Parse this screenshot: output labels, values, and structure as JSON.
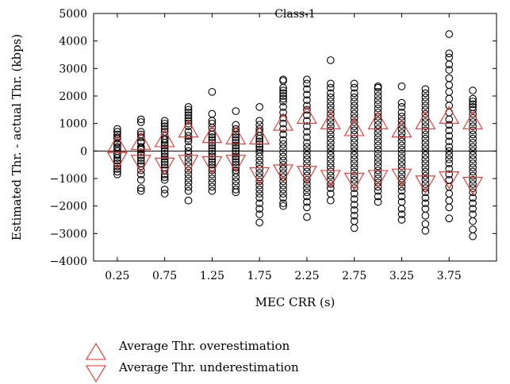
{
  "chart_data": {
    "type": "scatter",
    "title": "Class-1",
    "xlabel": "MEC CRR (s)",
    "ylabel": "Estimated Thr. - actual Thr. (kbps)",
    "xlim": [
      0,
      4.25
    ],
    "ylim": [
      -4000,
      5000
    ],
    "x_ticks": [
      0.25,
      0.75,
      1.25,
      1.75,
      2.25,
      2.75,
      3.25,
      3.75
    ],
    "y_ticks": [
      -4000,
      -3000,
      -2000,
      -1000,
      0,
      1000,
      2000,
      3000,
      4000,
      5000
    ],
    "zero_line": 0,
    "grid": false,
    "legend_position": "bottom-left",
    "colors": {
      "points": "#000000",
      "markers": "#e8322a",
      "axis": "#000000"
    },
    "series": [
      {
        "name": "points",
        "marker": "circle",
        "points": [
          {
            "x": 0.25,
            "y": [
              800,
              700,
              600,
              500,
              450,
              300,
              250,
              150,
              100,
              0,
              -100,
              -150,
              -250,
              -350,
              -450,
              -550,
              -650,
              -750,
              -850
            ]
          },
          {
            "x": 0.5,
            "y": [
              1150,
              1050,
              700,
              600,
              500,
              350,
              300,
              150,
              100,
              50,
              -50,
              -150,
              -250,
              -350,
              -450,
              -550,
              -700,
              -850,
              -1050,
              -1350,
              -1450
            ]
          },
          {
            "x": 0.75,
            "y": [
              1100,
              1000,
              900,
              800,
              700,
              550,
              450,
              400,
              300,
              200,
              100,
              0,
              -100,
              -200,
              -300,
              -400,
              -500,
              -600,
              -700,
              -850,
              -950,
              -1050,
              -1400,
              -1550
            ]
          },
          {
            "x": 1.0,
            "y": [
              1600,
              1500,
              1400,
              1300,
              1200,
              1100,
              1000,
              900,
              700,
              550,
              450,
              350,
              150,
              0,
              -100,
              -250,
              -400,
              -550,
              -700,
              -850,
              -1000,
              -1150,
              -1300,
              -1450,
              -1800
            ]
          },
          {
            "x": 1.25,
            "y": [
              2150,
              1350,
              1100,
              1000,
              850,
              700,
              600,
              500,
              400,
              300,
              200,
              100,
              0,
              -100,
              -200,
              -300,
              -400,
              -500,
              -600,
              -700,
              -850,
              -1000,
              -1150,
              -1300,
              -1450
            ]
          },
          {
            "x": 1.5,
            "y": [
              1450,
              950,
              800,
              700,
              600,
              500,
              400,
              300,
              200,
              100,
              0,
              -100,
              -200,
              -300,
              -400,
              -500,
              -600,
              -700,
              -800,
              -950,
              -1100,
              -1250,
              -1400,
              -1500
            ]
          },
          {
            "x": 1.75,
            "y": [
              1600,
              1100,
              950,
              800,
              700,
              550,
              450,
              350,
              250,
              150,
              50,
              -50,
              -200,
              -350,
              -500,
              -650,
              -800,
              -950,
              -1100,
              -1250,
              -1400,
              -1550,
              -1700,
              -1900,
              -2100,
              -2300,
              -2600
            ]
          },
          {
            "x": 2.0,
            "y": [
              2600,
              2550,
              2300,
              2200,
              2100,
              2000,
              1900,
              1800,
              1600,
              1400,
              1200,
              1000,
              800,
              600,
              400,
              250,
              100,
              -50,
              -200,
              -350,
              -500,
              -650,
              -800,
              -950,
              -1100,
              -1250,
              -1400,
              -1550,
              -1700,
              -1900,
              -2000
            ]
          },
          {
            "x": 2.25,
            "y": [
              2600,
              2450,
              2250,
              2050,
              1850,
              1650,
              1500,
              1300,
              1100,
              900,
              700,
              500,
              300,
              150,
              0,
              -150,
              -300,
              -450,
              -600,
              -750,
              -900,
              -1050,
              -1200,
              -1350,
              -1500,
              -1650,
              -1850,
              -2050,
              -2400
            ]
          },
          {
            "x": 2.5,
            "y": [
              3300,
              2450,
              2300,
              2100,
              1950,
              1800,
              1650,
              1500,
              1350,
              1200,
              1050,
              900,
              750,
              600,
              450,
              300,
              150,
              0,
              -150,
              -300,
              -450,
              -600,
              -750,
              -900,
              -1050,
              -1200,
              -1350,
              -1550,
              -1800
            ]
          },
          {
            "x": 2.75,
            "y": [
              2450,
              2300,
              2100,
              1950,
              1800,
              1650,
              1500,
              1350,
              1200,
              1050,
              900,
              750,
              600,
              450,
              300,
              150,
              0,
              -150,
              -300,
              -450,
              -600,
              -750,
              -900,
              -1050,
              -1200,
              -1350,
              -1550,
              -1750,
              -1950,
              -2150,
              -2350,
              -2550,
              -2800
            ]
          },
          {
            "x": 3.0,
            "y": [
              2350,
              2300,
              2150,
              2000,
              1850,
              1700,
              1550,
              1400,
              1250,
              1100,
              950,
              800,
              650,
              500,
              350,
              200,
              50,
              -100,
              -250,
              -400,
              -550,
              -700,
              -850,
              -1000,
              -1150,
              -1300,
              -1450,
              -1650,
              -1850
            ]
          },
          {
            "x": 3.25,
            "y": [
              2350,
              1750,
              1600,
              1400,
              1250,
              1100,
              950,
              800,
              650,
              500,
              350,
              200,
              50,
              -100,
              -250,
              -400,
              -550,
              -700,
              -850,
              -1000,
              -1150,
              -1300,
              -1450,
              -1650,
              -1850,
              -2100,
              -2300,
              -2500
            ]
          },
          {
            "x": 3.5,
            "y": [
              2250,
              2100,
              1950,
              1800,
              1650,
              1500,
              1350,
              1200,
              1050,
              900,
              750,
              600,
              450,
              300,
              150,
              0,
              -150,
              -300,
              -450,
              -600,
              -750,
              -900,
              -1050,
              -1200,
              -1350,
              -1500,
              -1700,
              -1900,
              -2100,
              -2350,
              -2650,
              -2900
            ]
          },
          {
            "x": 3.75,
            "y": [
              4250,
              3550,
              3400,
              3150,
              2950,
              2650,
              2400,
              2150,
              1900,
              1650,
              1400,
              1150,
              950,
              750,
              550,
              350,
              150,
              0,
              -150,
              -300,
              -450,
              -650,
              -850,
              -1050,
              -1300,
              -1550,
              -1800,
              -2050,
              -2450
            ]
          },
          {
            "x": 4.0,
            "y": [
              2200,
              1900,
              1800,
              1700,
              1600,
              1500,
              1350,
              1200,
              1050,
              900,
              750,
              600,
              450,
              300,
              150,
              0,
              -150,
              -300,
              -450,
              -600,
              -750,
              -900,
              -1050,
              -1200,
              -1350,
              -1500,
              -1700,
              -1900,
              -2100,
              -2300,
              -2550,
              -2850,
              -3100
            ]
          }
        ]
      },
      {
        "name": "Average Thr. overestimation",
        "marker": "triangle-up",
        "x": [
          0.25,
          0.5,
          0.75,
          1.0,
          1.25,
          1.5,
          1.75,
          2.0,
          2.25,
          2.5,
          2.75,
          3.0,
          3.25,
          3.5,
          3.75,
          4.0
        ],
        "values": [
          200,
          300,
          400,
          750,
          550,
          500,
          500,
          1000,
          1250,
          1050,
          800,
          1050,
          750,
          1050,
          1250,
          1050
        ]
      },
      {
        "name": "Average Thr. underestimation",
        "marker": "triangle-down",
        "x": [
          0.25,
          0.5,
          0.75,
          1.0,
          1.25,
          1.5,
          1.75,
          2.0,
          2.25,
          2.5,
          2.75,
          3.0,
          3.25,
          3.5,
          3.75,
          4.0
        ],
        "values": [
          -300,
          -400,
          -500,
          -400,
          -450,
          -400,
          -850,
          -750,
          -800,
          -950,
          -1050,
          -950,
          -900,
          -1150,
          -1000,
          -1200
        ]
      }
    ]
  },
  "legend": {
    "items": [
      {
        "marker": "triangle-up",
        "label": "Average Thr. overestimation"
      },
      {
        "marker": "triangle-down",
        "label": "Average Thr. underestimation"
      }
    ]
  }
}
